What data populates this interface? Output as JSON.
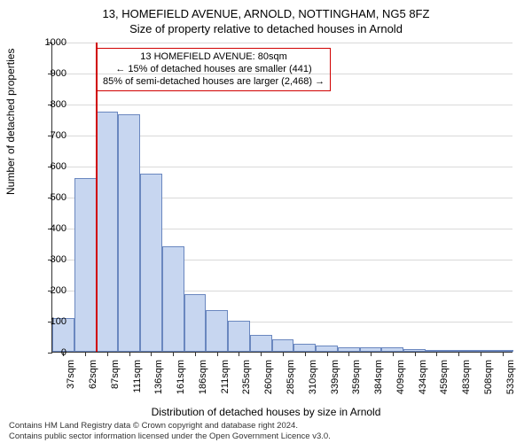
{
  "titles": {
    "line1": "13, HOMEFIELD AVENUE, ARNOLD, NOTTINGHAM, NG5 8FZ",
    "line2": "Size of property relative to detached houses in Arnold"
  },
  "axes": {
    "ylabel": "Number of detached properties",
    "xlabel": "Distribution of detached houses by size in Arnold",
    "ylim": [
      0,
      1000
    ],
    "ytick_step": 100,
    "yticks": [
      0,
      100,
      200,
      300,
      400,
      500,
      600,
      700,
      800,
      900,
      1000
    ],
    "xticks": [
      "37sqm",
      "62sqm",
      "87sqm",
      "111sqm",
      "136sqm",
      "161sqm",
      "186sqm",
      "211sqm",
      "235sqm",
      "260sqm",
      "285sqm",
      "310sqm",
      "339sqm",
      "359sqm",
      "384sqm",
      "409sqm",
      "434sqm",
      "459sqm",
      "483sqm",
      "508sqm",
      "533sqm"
    ],
    "label_fontsize": 12,
    "tick_fontsize": 11
  },
  "chart": {
    "type": "histogram",
    "values": [
      110,
      560,
      775,
      765,
      575,
      340,
      185,
      135,
      100,
      55,
      40,
      25,
      20,
      15,
      15,
      15,
      10,
      5,
      2,
      2,
      2
    ],
    "bar_fill": "#c7d6f0",
    "bar_stroke": "#6a87bf",
    "background_color": "#ffffff",
    "grid_color": "#d9d9d9",
    "bar_width_ratio": 1.0,
    "reference_line": {
      "x_index_after": 1,
      "color": "#d00000",
      "width": 2
    }
  },
  "annotation": {
    "lines": [
      "13 HOMEFIELD AVENUE: 80sqm",
      "← 15% of detached houses are smaller (441)",
      "85% of semi-detached houses are larger (2,468) →"
    ],
    "border_color": "#d00000",
    "fontsize": 11
  },
  "footer": {
    "line1": "Contains HM Land Registry data © Crown copyright and database right 2024.",
    "line2": "Contains public sector information licensed under the Open Government Licence v3.0."
  }
}
